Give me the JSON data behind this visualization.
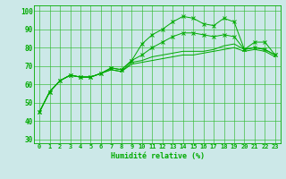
{
  "xlabel": "Humidité relative (%)",
  "ylabel": "",
  "background_color": "#cce8e8",
  "grid_color": "#33bb33",
  "line_color": "#00aa00",
  "marker_color": "#00aa00",
  "xlim": [
    -0.5,
    23.5
  ],
  "ylim": [
    28,
    103
  ],
  "yticks": [
    30,
    40,
    50,
    60,
    70,
    80,
    90,
    100
  ],
  "xticks": [
    0,
    1,
    2,
    3,
    4,
    5,
    6,
    7,
    8,
    9,
    10,
    11,
    12,
    13,
    14,
    15,
    16,
    17,
    18,
    19,
    20,
    21,
    22,
    23
  ],
  "series": [
    [
      45,
      56,
      62,
      65,
      64,
      64,
      66,
      69,
      68,
      73,
      82,
      87,
      90,
      94,
      97,
      96,
      93,
      92,
      96,
      94,
      79,
      83,
      83,
      76
    ],
    [
      45,
      56,
      62,
      65,
      64,
      64,
      66,
      69,
      68,
      73,
      76,
      80,
      83,
      86,
      88,
      88,
      87,
      86,
      87,
      86,
      79,
      80,
      79,
      76
    ],
    [
      45,
      56,
      62,
      65,
      64,
      64,
      66,
      68,
      67,
      72,
      73,
      75,
      76,
      77,
      78,
      78,
      78,
      79,
      81,
      82,
      79,
      80,
      79,
      76
    ],
    [
      45,
      56,
      62,
      65,
      64,
      64,
      66,
      68,
      67,
      71,
      72,
      73,
      74,
      75,
      76,
      76,
      77,
      78,
      79,
      80,
      78,
      79,
      78,
      75
    ]
  ],
  "marker_series": [
    0,
    1
  ],
  "xlabel_fontsize": 6.0,
  "ytick_fontsize": 5.5,
  "xtick_fontsize": 5.0
}
